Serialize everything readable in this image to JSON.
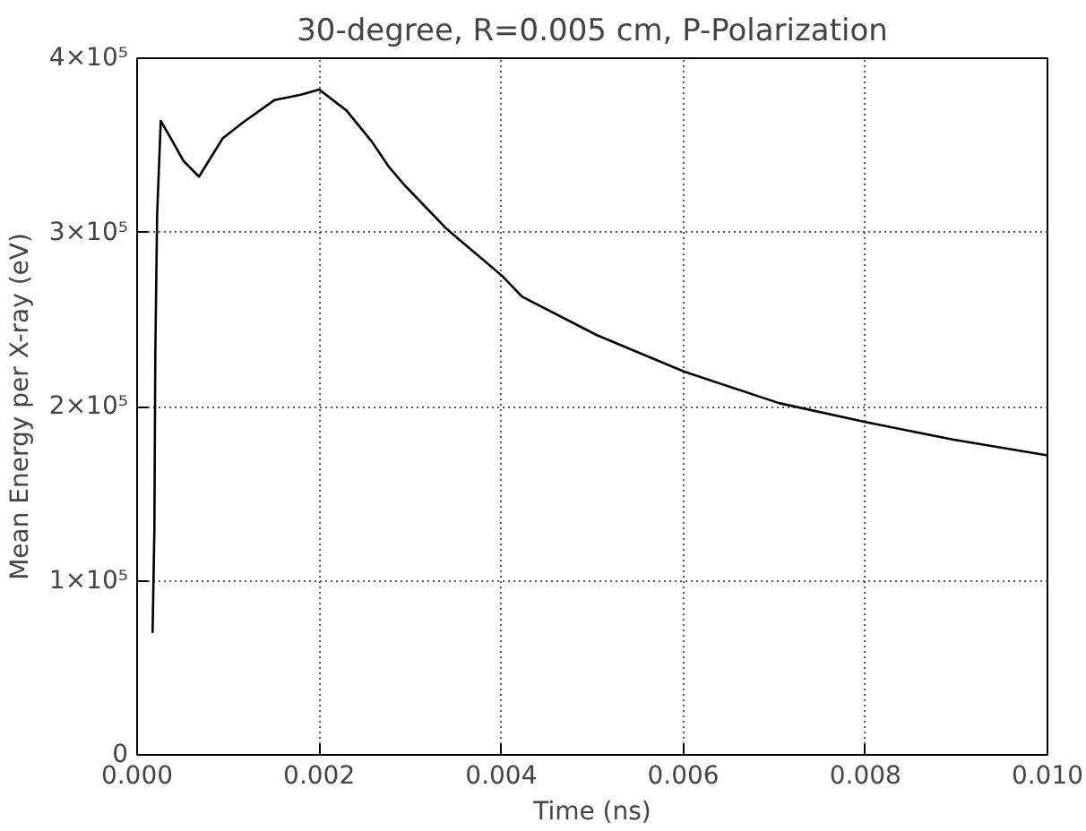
{
  "chart_data": {
    "type": "line",
    "title": "30-degree, R=0.005 cm, P-Polarization",
    "xlabel": "Time (ns)",
    "ylabel": "Mean Energy per X-ray (eV)",
    "x": [
      0.00017,
      0.00019,
      0.0002,
      0.00022,
      0.00026,
      0.00037,
      0.00051,
      0.00068,
      0.00094,
      0.00116,
      0.00151,
      0.0018,
      0.002,
      0.0023,
      0.00258,
      0.00276,
      0.00294,
      0.0034,
      0.00401,
      0.00423,
      0.00505,
      0.00601,
      0.00705,
      0.00801,
      0.00897,
      0.01
    ],
    "series": [
      {
        "color": "#000000",
        "values": [
          70000,
          130000,
          230000,
          310000,
          364000,
          354000,
          341000,
          332000,
          354000,
          363000,
          376000,
          379000,
          382000,
          370000,
          352000,
          338000,
          327000,
          302000,
          275000,
          263000,
          241000,
          220000,
          202000,
          191000,
          181000,
          172000
        ]
      }
    ],
    "xlim": [
      0,
      0.01
    ],
    "xticks": [
      {
        "value": 0,
        "label": "0.000"
      },
      {
        "value": 0.002,
        "label": "0.002"
      },
      {
        "value": 0.004,
        "label": "0.004"
      },
      {
        "value": 0.006,
        "label": "0.006"
      },
      {
        "value": 0.008,
        "label": "0.008"
      },
      {
        "value": 0.01,
        "label": "0.010"
      }
    ],
    "ylim": [
      0,
      400000
    ],
    "yticks": [
      {
        "value": 0,
        "label": "0"
      },
      {
        "value": 100000,
        "label": "1×10⁵"
      },
      {
        "value": 200000,
        "label": "2×10⁵"
      },
      {
        "value": 300000,
        "label": "3×10⁵"
      },
      {
        "value": 400000,
        "label": "4×10⁵"
      }
    ],
    "grid": true,
    "marker": "none",
    "line_style": "solid"
  }
}
